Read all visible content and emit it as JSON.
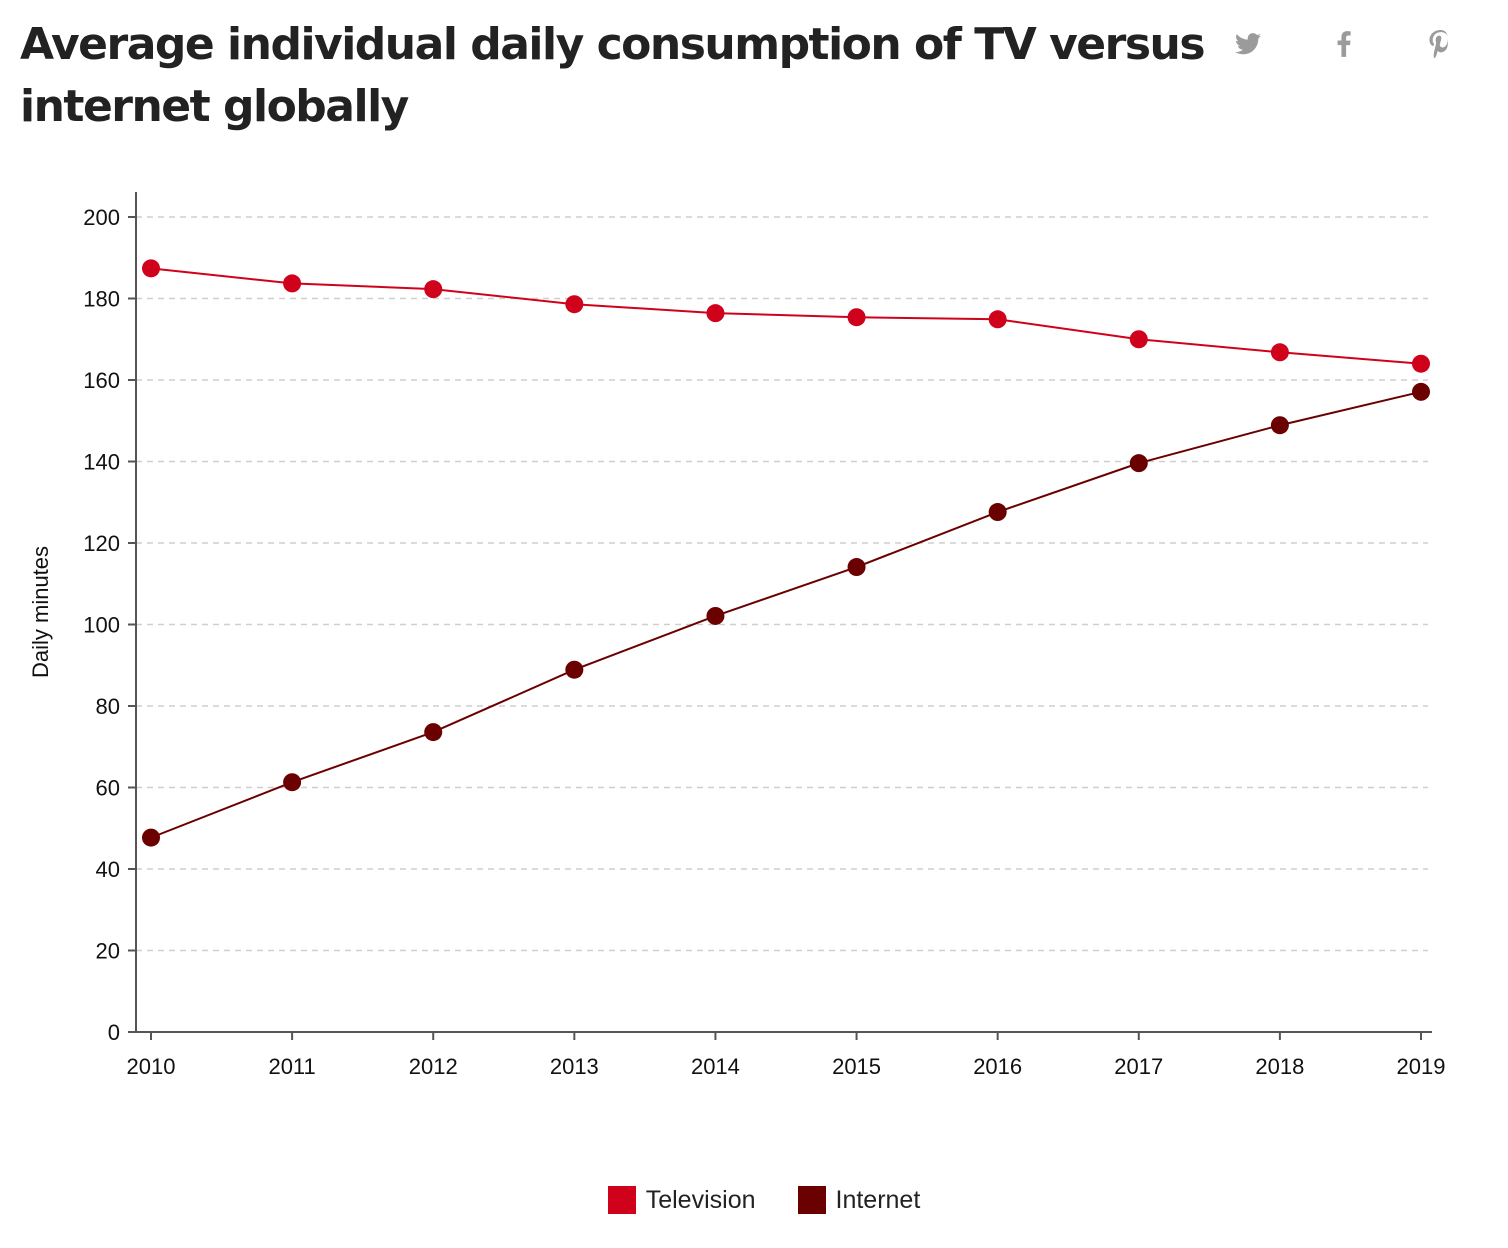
{
  "title": "Average individual daily consumption of TV versus internet globally",
  "share": {
    "twitter_icon": "twitter-icon",
    "facebook_icon": "facebook-icon",
    "pinterest_icon": "pinterest-icon",
    "icon_color": "#9b9b9b"
  },
  "chart_data": {
    "type": "line",
    "title": "Average individual daily consumption of TV versus internet globally",
    "xlabel": "",
    "ylabel": "Daily minutes",
    "x": [
      "2010",
      "2011",
      "2012",
      "2013",
      "2014",
      "2015",
      "2016",
      "2017",
      "2018",
      "2019"
    ],
    "ylim": [
      0,
      200
    ],
    "yticks": [
      0,
      20,
      40,
      60,
      80,
      100,
      120,
      140,
      160,
      180,
      200
    ],
    "grid": true,
    "legend_position": "bottom-center",
    "series": [
      {
        "name": "Television",
        "color": "#d0021b",
        "values": [
          187.4,
          183.7,
          182.3,
          178.6,
          176.4,
          175.4,
          174.9,
          170.0,
          166.8,
          164.0
        ]
      },
      {
        "name": "Internet",
        "color": "#6b0000",
        "values": [
          47.7,
          61.3,
          73.6,
          88.9,
          102.1,
          114.1,
          127.6,
          139.6,
          148.9,
          157.1
        ]
      }
    ]
  }
}
